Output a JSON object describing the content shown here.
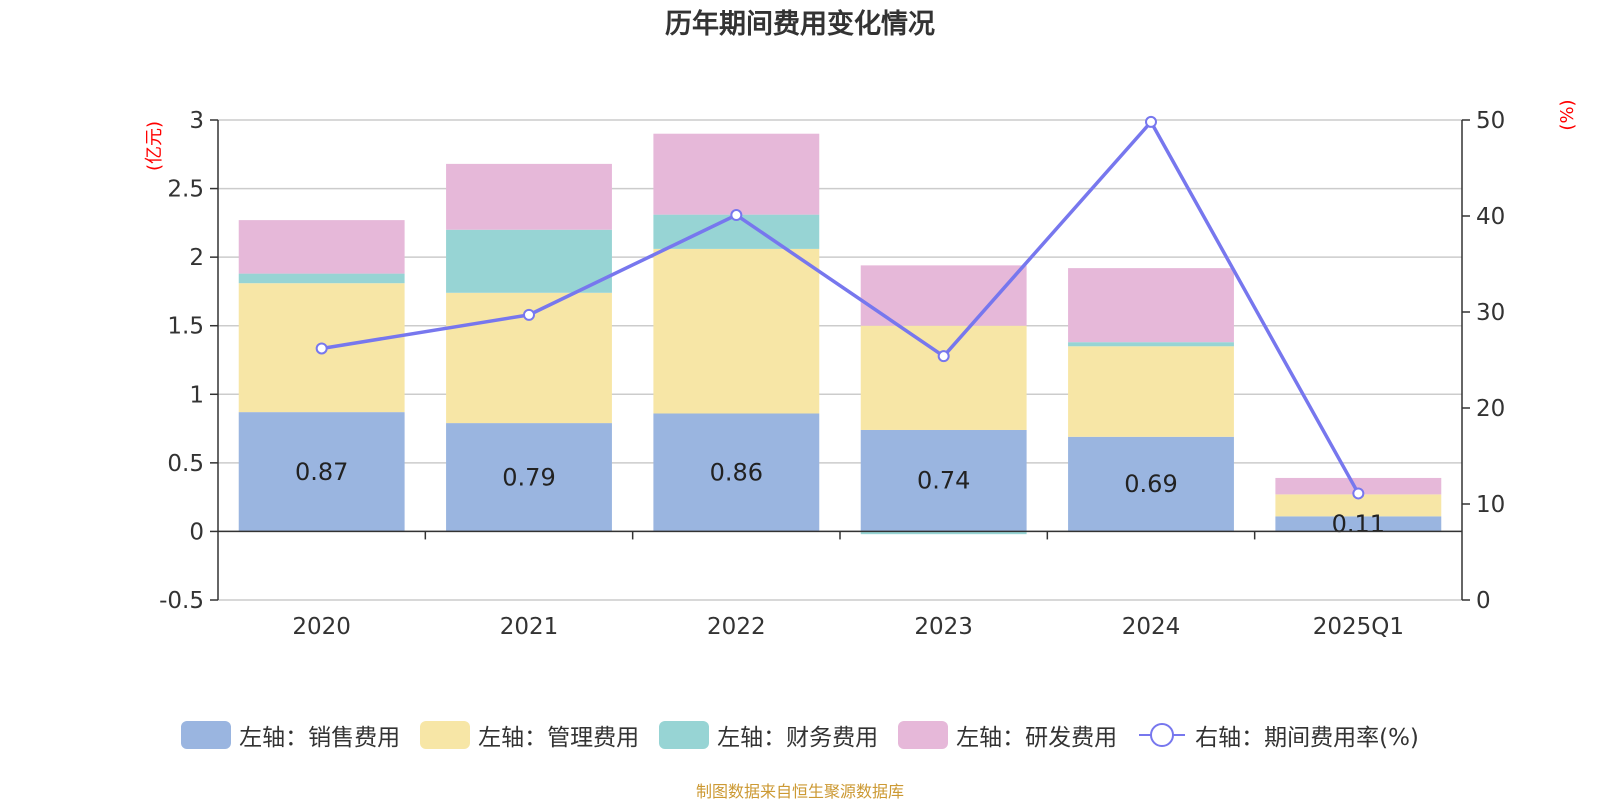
{
  "title": "历年期间费用变化情况",
  "source": "制图数据来自恒生聚源数据库",
  "colors": {
    "sales": "#9ab5e0",
    "admin": "#f7e6a6",
    "finance": "#97d4d4",
    "rd": "#e6b8d9",
    "line": "#7777ee",
    "axis_label": "#ff0000",
    "source": "#cc9933"
  },
  "chart_data": {
    "type": "bar",
    "stacked": true,
    "title": "历年期间费用变化情况",
    "categories": [
      "2020",
      "2021",
      "2022",
      "2023",
      "2024",
      "2025Q1"
    ],
    "left_axis": {
      "label": "(亿元)",
      "ylim": [
        -0.5,
        3
      ],
      "ticks": [
        "3",
        "2.5",
        "2",
        "1.5",
        "1",
        "0.5",
        "0",
        "-0.5"
      ]
    },
    "right_axis": {
      "label": "(%)",
      "ylim": [
        0,
        50
      ],
      "ticks": [
        "50",
        "40",
        "30",
        "20",
        "10",
        "0"
      ]
    },
    "series": [
      {
        "name": "左轴：销售费用",
        "axis": "left",
        "type": "bar",
        "values": [
          0.87,
          0.79,
          0.86,
          0.74,
          0.69,
          0.11
        ],
        "labels": [
          "0.87",
          "0.79",
          "0.86",
          "0.74",
          "0.69",
          "0.11"
        ]
      },
      {
        "name": "左轴：管理费用",
        "axis": "left",
        "type": "bar",
        "values": [
          0.94,
          0.95,
          1.2,
          0.76,
          0.66,
          0.16
        ]
      },
      {
        "name": "左轴：财务费用",
        "axis": "left",
        "type": "bar",
        "values": [
          0.07,
          0.46,
          0.25,
          -0.02,
          0.03,
          0.0
        ]
      },
      {
        "name": "左轴：研发费用",
        "axis": "left",
        "type": "bar",
        "values": [
          0.39,
          0.48,
          0.59,
          0.44,
          0.54,
          0.12
        ]
      },
      {
        "name": "右轴：期间费用率(%)",
        "axis": "right",
        "type": "line",
        "values": [
          26.2,
          29.7,
          40.1,
          25.4,
          49.8,
          11.1
        ]
      }
    ],
    "grid": true,
    "legend_position": "bottom"
  }
}
